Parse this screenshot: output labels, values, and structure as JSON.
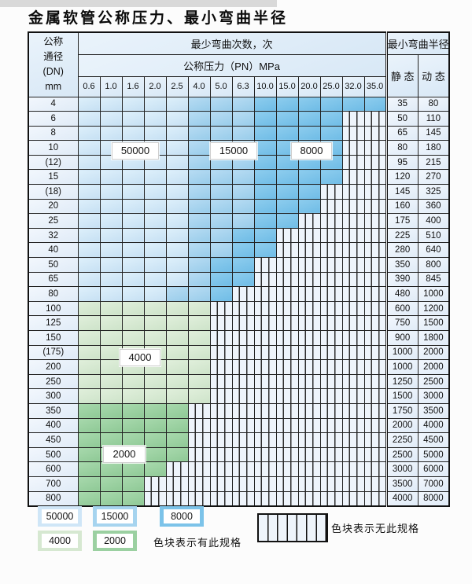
{
  "title": "金属软管公称压力、最小弯曲半径",
  "colors": {
    "blue_50000": "#cfe6f7",
    "blue_15000": "#a6d4ef",
    "blue_8000": "#7cc3e9",
    "green_4000": "#d6e8d1",
    "green_2000": "#9bd0a1",
    "stripe_bg": "#eef4fb",
    "grid_line": "#222222",
    "label_cell_bg": "#e7f1fa"
  },
  "table": {
    "header": {
      "dn_lines": [
        "公称",
        "通径",
        "(DN)",
        "mm"
      ],
      "bend_count_label": "最少弯曲次数，次",
      "pressure_label": "公称压力（PN）MPa",
      "pressure_columns": [
        "0.6",
        "1.0",
        "1.6",
        "2.0",
        "2.5",
        "4.0",
        "5.0",
        "6.3",
        "10.0",
        "15.0",
        "20.0",
        "25.0",
        "32.0",
        "35.0"
      ],
      "radius_label": "最小弯曲半径",
      "static_label": "静 态",
      "dynamic_label": "动 态"
    },
    "rows": [
      {
        "dn": "4",
        "zones": [
          {
            "tone": "b-light",
            "to": 4
          },
          {
            "tone": "b-med",
            "to": 7
          },
          {
            "tone": "b-dark",
            "to": 13
          }
        ],
        "static": "35",
        "dynamic": "80"
      },
      {
        "dn": "6",
        "zones": [
          {
            "tone": "b-light",
            "to": 4
          },
          {
            "tone": "b-med",
            "to": 7
          },
          {
            "tone": "b-dark",
            "to": 11
          }
        ],
        "static": "50",
        "dynamic": "110"
      },
      {
        "dn": "8",
        "zones": [
          {
            "tone": "b-light",
            "to": 4
          },
          {
            "tone": "b-med",
            "to": 7
          },
          {
            "tone": "b-dark",
            "to": 11
          }
        ],
        "static": "65",
        "dynamic": "145"
      },
      {
        "dn": "10",
        "zones": [
          {
            "tone": "b-light",
            "to": 4
          },
          {
            "tone": "b-med",
            "to": 7
          },
          {
            "tone": "b-dark",
            "to": 11
          }
        ],
        "static": "80",
        "dynamic": "180"
      },
      {
        "dn": "(12)",
        "zones": [
          {
            "tone": "b-light",
            "to": 4
          },
          {
            "tone": "b-med",
            "to": 7
          },
          {
            "tone": "b-dark",
            "to": 11
          }
        ],
        "static": "95",
        "dynamic": "215"
      },
      {
        "dn": "15",
        "zones": [
          {
            "tone": "b-light",
            "to": 4
          },
          {
            "tone": "b-med",
            "to": 7
          },
          {
            "tone": "b-dark",
            "to": 11
          }
        ],
        "static": "120",
        "dynamic": "270"
      },
      {
        "dn": "(18)",
        "zones": [
          {
            "tone": "b-light",
            "to": 4
          },
          {
            "tone": "b-med",
            "to": 7
          },
          {
            "tone": "b-dark",
            "to": 10
          }
        ],
        "static": "145",
        "dynamic": "325"
      },
      {
        "dn": "20",
        "zones": [
          {
            "tone": "b-light",
            "to": 4
          },
          {
            "tone": "b-med",
            "to": 7
          },
          {
            "tone": "b-dark",
            "to": 10
          }
        ],
        "static": "160",
        "dynamic": "360"
      },
      {
        "dn": "25",
        "zones": [
          {
            "tone": "b-light",
            "to": 4
          },
          {
            "tone": "b-med",
            "to": 7
          },
          {
            "tone": "b-dark",
            "to": 9
          }
        ],
        "static": "175",
        "dynamic": "400"
      },
      {
        "dn": "32",
        "zones": [
          {
            "tone": "b-light",
            "to": 4
          },
          {
            "tone": "b-med",
            "to": 6
          },
          {
            "tone": "b-dark",
            "to": 8
          }
        ],
        "static": "225",
        "dynamic": "510"
      },
      {
        "dn": "40",
        "zones": [
          {
            "tone": "b-light",
            "to": 4
          },
          {
            "tone": "b-med",
            "to": 6
          },
          {
            "tone": "b-dark",
            "to": 8
          }
        ],
        "static": "280",
        "dynamic": "640"
      },
      {
        "dn": "50",
        "zones": [
          {
            "tone": "b-light",
            "to": 4
          },
          {
            "tone": "b-med",
            "to": 5
          },
          {
            "tone": "b-dark",
            "to": 7
          }
        ],
        "static": "350",
        "dynamic": "800"
      },
      {
        "dn": "65",
        "zones": [
          {
            "tone": "b-light",
            "to": 4
          },
          {
            "tone": "b-med",
            "to": 5
          },
          {
            "tone": "b-dark",
            "to": 7
          }
        ],
        "static": "390",
        "dynamic": "845"
      },
      {
        "dn": "80",
        "zones": [
          {
            "tone": "b-light",
            "to": 3
          },
          {
            "tone": "b-med",
            "to": 5
          },
          {
            "tone": "b-dark",
            "to": 6
          }
        ],
        "static": "480",
        "dynamic": "1000"
      },
      {
        "dn": "100",
        "zones": [
          {
            "tone": "g-light",
            "to": 5
          }
        ],
        "static": "600",
        "dynamic": "1200"
      },
      {
        "dn": "125",
        "zones": [
          {
            "tone": "g-light",
            "to": 5
          }
        ],
        "static": "750",
        "dynamic": "1500"
      },
      {
        "dn": "150",
        "zones": [
          {
            "tone": "g-light",
            "to": 5
          }
        ],
        "static": "900",
        "dynamic": "1800"
      },
      {
        "dn": "(175)",
        "zones": [
          {
            "tone": "g-light",
            "to": 5
          }
        ],
        "static": "1000",
        "dynamic": "2000"
      },
      {
        "dn": "200",
        "zones": [
          {
            "tone": "g-light",
            "to": 5
          }
        ],
        "static": "1000",
        "dynamic": "2000"
      },
      {
        "dn": "250",
        "zones": [
          {
            "tone": "g-light",
            "to": 5
          }
        ],
        "static": "1250",
        "dynamic": "2500"
      },
      {
        "dn": "300",
        "zones": [
          {
            "tone": "g-light",
            "to": 5
          }
        ],
        "static": "1500",
        "dynamic": "3000"
      },
      {
        "dn": "350",
        "zones": [
          {
            "tone": "g-dark",
            "to": 4
          }
        ],
        "static": "1750",
        "dynamic": "3500"
      },
      {
        "dn": "400",
        "zones": [
          {
            "tone": "g-dark",
            "to": 4
          }
        ],
        "static": "2000",
        "dynamic": "4000"
      },
      {
        "dn": "450",
        "zones": [
          {
            "tone": "g-dark",
            "to": 4
          }
        ],
        "static": "2250",
        "dynamic": "4500"
      },
      {
        "dn": "500",
        "zones": [
          {
            "tone": "g-dark",
            "to": 4
          }
        ],
        "static": "2500",
        "dynamic": "5000"
      },
      {
        "dn": "600",
        "zones": [
          {
            "tone": "g-dark",
            "to": 3
          }
        ],
        "static": "3000",
        "dynamic": "6000"
      },
      {
        "dn": "700",
        "zones": [
          {
            "tone": "g-dark",
            "to": 2
          }
        ],
        "static": "3500",
        "dynamic": "7000"
      },
      {
        "dn": "800",
        "zones": [
          {
            "tone": "g-dark",
            "to": 2
          }
        ],
        "static": "4000",
        "dynamic": "8000"
      }
    ]
  },
  "overlays": [
    {
      "id": "ov-50000",
      "text": "50000"
    },
    {
      "id": "ov-15000",
      "text": "15000"
    },
    {
      "id": "ov-8000",
      "text": "8000"
    },
    {
      "id": "ov-4000",
      "text": "4000"
    },
    {
      "id": "ov-2000",
      "text": "2000"
    }
  ],
  "legend": {
    "swatches": [
      {
        "id": "sw-50000",
        "text": "50000"
      },
      {
        "id": "sw-15000",
        "text": "15000"
      },
      {
        "id": "sw-8000",
        "text": "8000"
      },
      {
        "id": "sw-4000",
        "text": "4000"
      },
      {
        "id": "sw-2000",
        "text": "2000"
      }
    ],
    "has_spec_note": "色块表示有此规格",
    "no_spec_note": "色块表示无此规格"
  }
}
